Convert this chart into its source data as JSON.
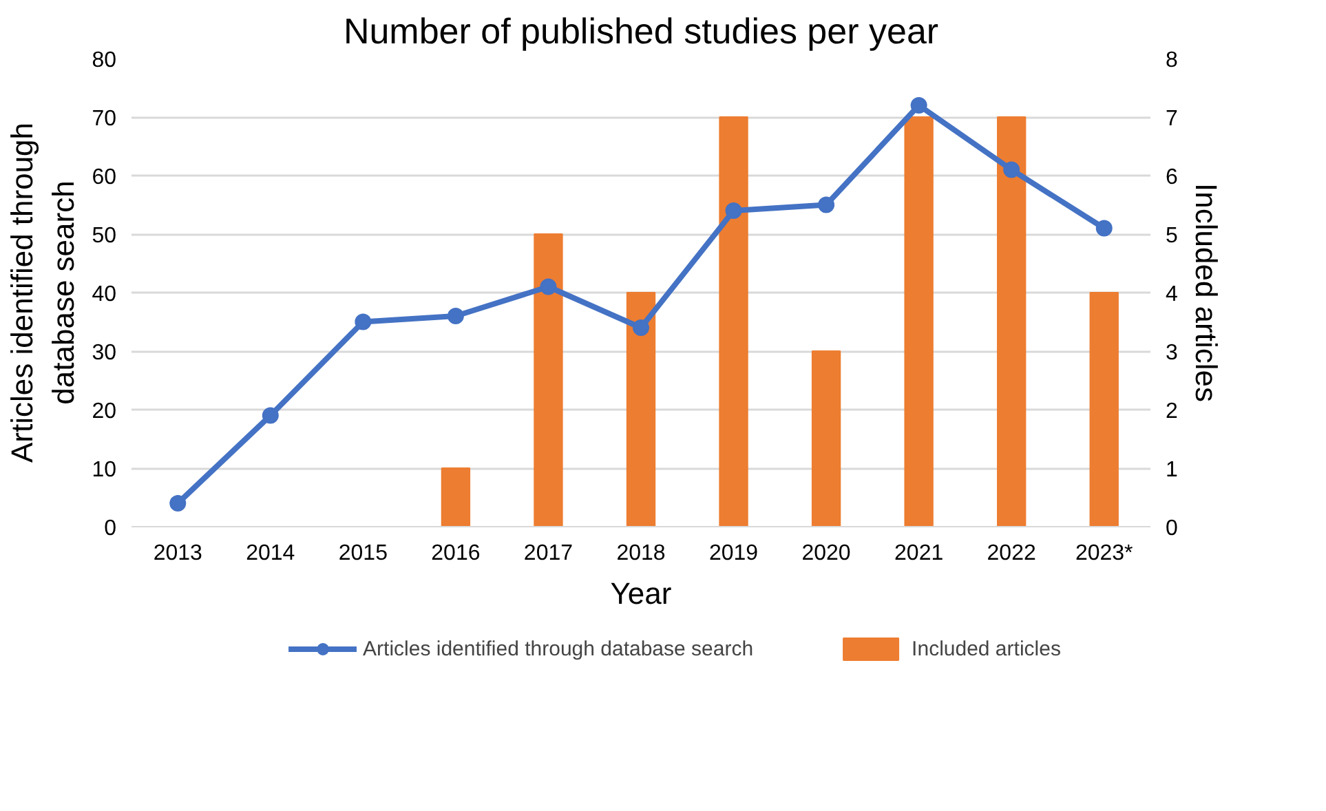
{
  "chart_data": {
    "type": "bar",
    "title": "Number of published studies per year",
    "xlabel": "Year",
    "ylabel": "Articles identified through\ndatabase search",
    "y2label": "Included articles",
    "categories": [
      "2013",
      "2014",
      "2015",
      "2016",
      "2017",
      "2018",
      "2019",
      "2020",
      "2021",
      "2022",
      "2023*"
    ],
    "series": [
      {
        "name": "Articles identified through database search",
        "type": "line",
        "color": "#4472c4",
        "values": [
          4,
          19,
          35,
          36,
          41,
          34,
          54,
          55,
          72,
          61,
          51
        ]
      },
      {
        "name": "Included articles",
        "axis": "y2",
        "color": "#ed7d31",
        "values": [
          0,
          0,
          0,
          1,
          5,
          4,
          7,
          3,
          7,
          7,
          4
        ]
      }
    ],
    "ylim": [
      0,
      80
    ],
    "yticks": [
      0,
      10,
      20,
      30,
      40,
      50,
      60,
      70,
      80
    ],
    "y2lim": [
      0,
      8
    ],
    "y2ticks": [
      0,
      1,
      2,
      3,
      4,
      5,
      6,
      7,
      8
    ],
    "grid": "y",
    "legend": "bottom",
    "marker": "circle",
    "line_style": "solid"
  }
}
